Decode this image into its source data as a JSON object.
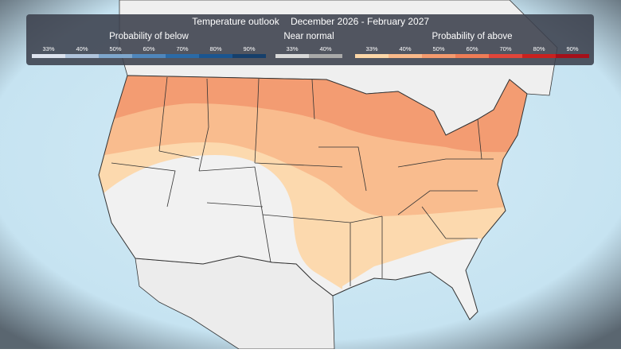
{
  "header": {
    "title": "Temperature outlook",
    "period": "December 2026 - February 2027"
  },
  "legend": {
    "groups": [
      {
        "title": "Probability of below",
        "items": [
          {
            "label": "33%",
            "color": "#dde3ee"
          },
          {
            "label": "40%",
            "color": "#b0c4dc"
          },
          {
            "label": "50%",
            "color": "#7ea6cc"
          },
          {
            "label": "60%",
            "color": "#4f86bb"
          },
          {
            "label": "70%",
            "color": "#2b6aa6"
          },
          {
            "label": "80%",
            "color": "#1a5590"
          },
          {
            "label": "90%",
            "color": "#163f6b"
          }
        ]
      },
      {
        "title": "Near normal",
        "items": [
          {
            "label": "33%",
            "color": "#d9d9d9"
          },
          {
            "label": "40%",
            "color": "#a9a9a9"
          }
        ]
      },
      {
        "title": "Probability of above",
        "items": [
          {
            "label": "33%",
            "color": "#fcd7a8"
          },
          {
            "label": "40%",
            "color": "#f9b98a"
          },
          {
            "label": "50%",
            "color": "#f49a6e"
          },
          {
            "label": "60%",
            "color": "#ee7c56"
          },
          {
            "label": "70%",
            "color": "#e0453a"
          },
          {
            "label": "80%",
            "color": "#c9211f"
          },
          {
            "label": "90%",
            "color": "#a5101a"
          }
        ]
      }
    ]
  }
}
